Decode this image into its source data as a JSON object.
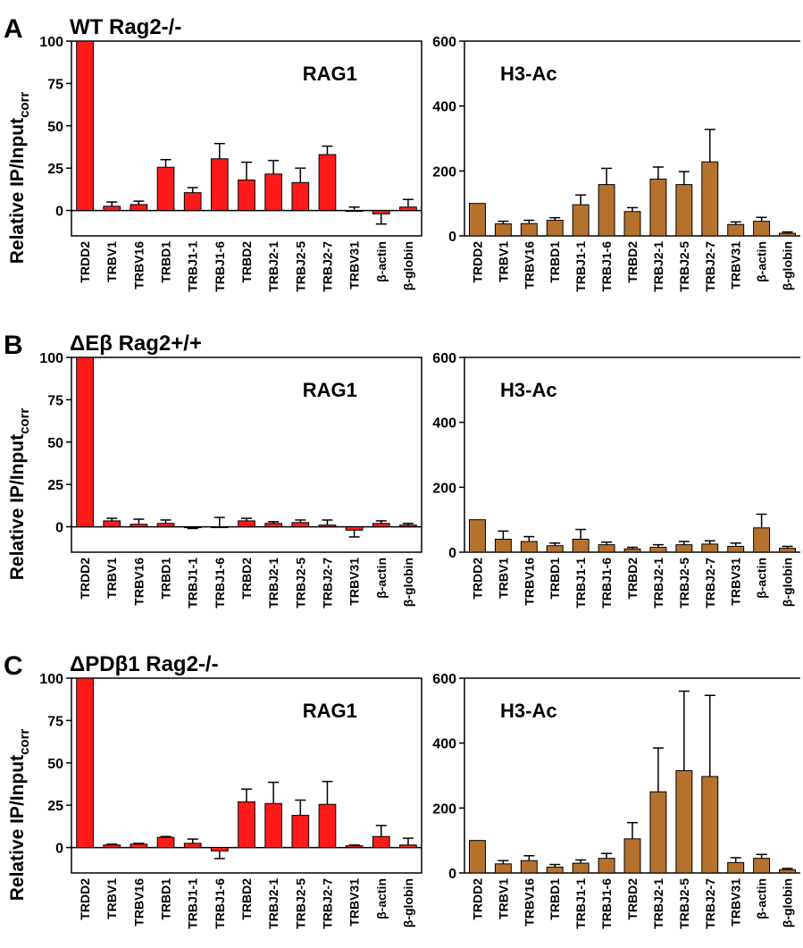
{
  "figure": {
    "ylabel": "Relative IP/Input",
    "ylabel_sub": "corr"
  },
  "colors": {
    "rag1": "#ff1a1a",
    "h3": "#b5712e",
    "axis": "#000000"
  },
  "categories": [
    "TRDD2",
    "TRBV1",
    "TRBV16",
    "TRBD1",
    "TRBJ1-1",
    "TRBJ1-6",
    "TRBD2",
    "TRBJ2-1",
    "TRBJ2-5",
    "TRBJ2-7",
    "TRBV31",
    "β-actin",
    "β-globin"
  ],
  "panels": [
    {
      "letter": "A",
      "title": "WT Rag2-/-"
    },
    {
      "letter": "B",
      "title": "ΔEβ Rag2+/+"
    },
    {
      "letter": "C",
      "title": "ΔPDβ1 Rag2-/-"
    }
  ],
  "chart_data": [
    {
      "type": "bar",
      "panel": "A",
      "series_label": "RAG1",
      "ylabel": "Relative IP/Input corr",
      "categories": [
        "TRDD2",
        "TRBV1",
        "TRBV16",
        "TRBD1",
        "TRBJ1-1",
        "TRBJ1-6",
        "TRBD2",
        "TRBJ2-1",
        "TRBJ2-5",
        "TRBJ2-7",
        "TRBV31",
        "β-actin",
        "β-globin"
      ],
      "ylim": [
        -15,
        100
      ],
      "yticks": [
        0,
        25,
        50,
        75,
        100
      ],
      "values": [
        100,
        2.5,
        3.5,
        25.5,
        10.5,
        30.5,
        18,
        21.5,
        16.5,
        33,
        0,
        -2,
        2
      ],
      "errors": [
        0,
        2.5,
        2,
        4.5,
        3,
        9,
        10.5,
        8,
        8.5,
        5,
        2,
        6,
        4.5
      ]
    },
    {
      "type": "bar",
      "panel": "A",
      "series_label": "H3-Ac",
      "categories": [
        "TRDD2",
        "TRBV1",
        "TRBV16",
        "TRBD1",
        "TRBJ1-1",
        "TRBJ1-6",
        "TRBD2",
        "TRBJ2-1",
        "TRBJ2-5",
        "TRBJ2-7",
        "TRBV31",
        "β-actin",
        "β-globin"
      ],
      "ylim": [
        0,
        600
      ],
      "yticks": [
        0,
        200,
        400,
        600
      ],
      "values": [
        100,
        37,
        38,
        48,
        96,
        158,
        75,
        175,
        158,
        228,
        35,
        45,
        8
      ],
      "errors": [
        0,
        8,
        10,
        8,
        30,
        50,
        12,
        37,
        40,
        100,
        8,
        12,
        4
      ]
    },
    {
      "type": "bar",
      "panel": "B",
      "series_label": "RAG1",
      "ylabel": "Relative IP/Input corr",
      "categories": [
        "TRDD2",
        "TRBV1",
        "TRBV16",
        "TRBD1",
        "TRBJ1-1",
        "TRBJ1-6",
        "TRBD2",
        "TRBJ2-1",
        "TRBJ2-5",
        "TRBJ2-7",
        "TRBV31",
        "β-actin",
        "β-globin"
      ],
      "ylim": [
        -15,
        100
      ],
      "yticks": [
        0,
        25,
        50,
        75,
        100
      ],
      "values": [
        100,
        3.5,
        1.5,
        2,
        -0.5,
        0,
        3.5,
        2,
        2.5,
        1,
        -2,
        2,
        1
      ],
      "errors": [
        0,
        1.5,
        3,
        2,
        0.5,
        5.5,
        1.5,
        1,
        1.5,
        3,
        4,
        1.5,
        1
      ]
    },
    {
      "type": "bar",
      "panel": "B",
      "series_label": "H3-Ac",
      "categories": [
        "TRDD2",
        "TRBV1",
        "TRBV16",
        "TRBD1",
        "TRBJ1-1",
        "TRBJ1-6",
        "TRBD2",
        "TRBJ2-1",
        "TRBJ2-5",
        "TRBJ2-7",
        "TRBV31",
        "β-actin",
        "β-globin"
      ],
      "ylim": [
        0,
        600
      ],
      "yticks": [
        0,
        200,
        400,
        600
      ],
      "values": [
        100,
        40,
        33,
        20,
        40,
        23,
        10,
        15,
        23,
        25,
        18,
        75,
        12
      ],
      "errors": [
        0,
        25,
        15,
        8,
        30,
        8,
        5,
        8,
        10,
        10,
        10,
        42,
        6
      ]
    },
    {
      "type": "bar",
      "panel": "C",
      "series_label": "RAG1",
      "ylabel": "Relative IP/Input corr",
      "categories": [
        "TRDD2",
        "TRBV1",
        "TRBV16",
        "TRBD1",
        "TRBJ1-1",
        "TRBJ1-6",
        "TRBD2",
        "TRBJ2-1",
        "TRBJ2-5",
        "TRBJ2-7",
        "TRBV31",
        "β-actin",
        "β-globin"
      ],
      "ylim": [
        -15,
        100
      ],
      "yticks": [
        0,
        25,
        50,
        75,
        100
      ],
      "values": [
        100,
        1.5,
        2,
        6,
        2.5,
        -2,
        27,
        26,
        19,
        25.5,
        1,
        6.5,
        1.5
      ],
      "errors": [
        0,
        0.5,
        0.5,
        0.5,
        2.5,
        4.5,
        7.5,
        12.5,
        9,
        13.5,
        0.5,
        6.5,
        4
      ]
    },
    {
      "type": "bar",
      "panel": "C",
      "series_label": "H3-Ac",
      "categories": [
        "TRDD2",
        "TRBV1",
        "TRBV16",
        "TRBD1",
        "TRBJ1-1",
        "TRBJ1-6",
        "TRBD2",
        "TRBJ2-1",
        "TRBJ2-5",
        "TRBJ2-7",
        "TRBV31",
        "β-actin",
        "β-globin"
      ],
      "ylim": [
        0,
        600
      ],
      "yticks": [
        0,
        200,
        400,
        600
      ],
      "values": [
        100,
        28,
        38,
        18,
        30,
        45,
        105,
        250,
        315,
        297,
        32,
        45,
        10
      ],
      "errors": [
        0,
        10,
        15,
        8,
        10,
        15,
        50,
        135,
        245,
        250,
        15,
        12,
        4
      ]
    }
  ]
}
